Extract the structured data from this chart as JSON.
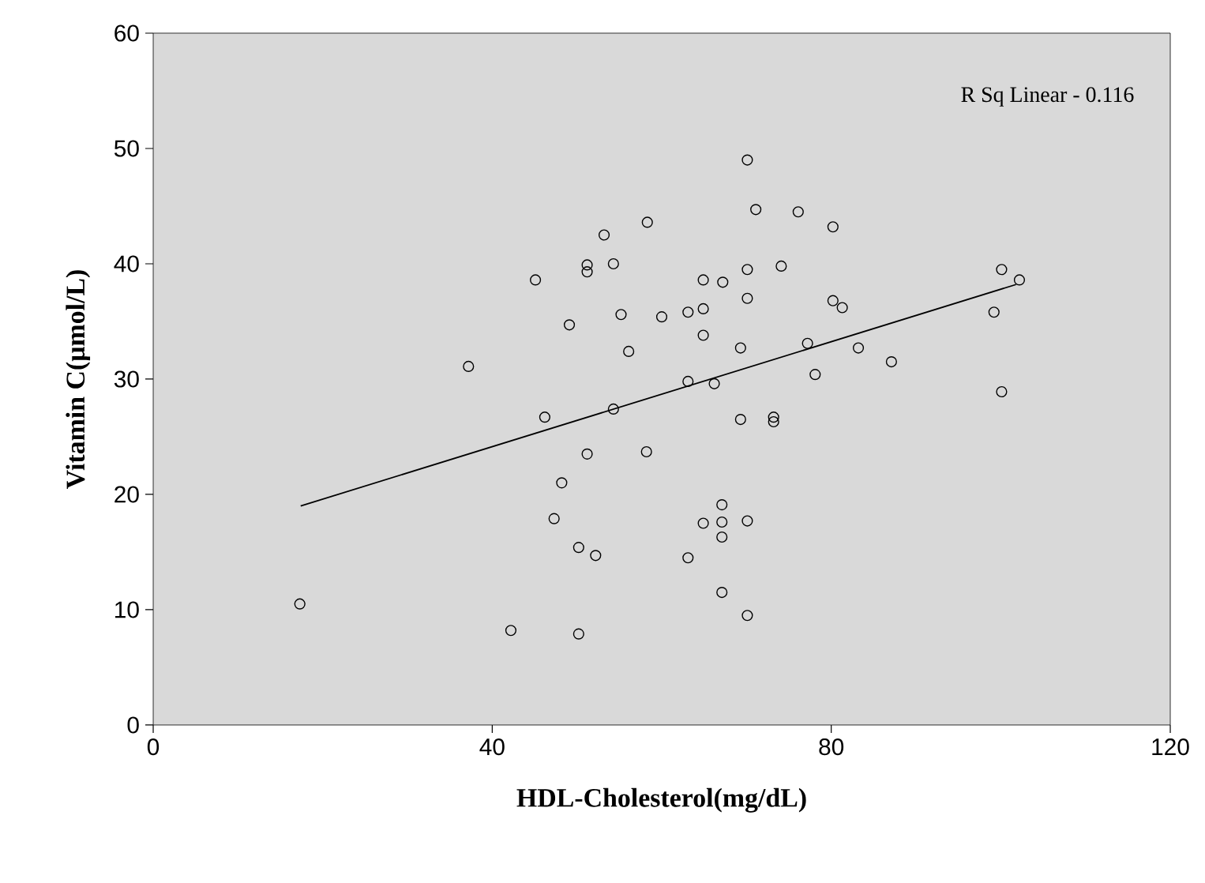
{
  "chart_data": {
    "type": "scatter",
    "xlabel": "HDL-Cholesterol(mg/dL)",
    "ylabel": "Vitamin C(μmol/L)",
    "annotations": [
      "R Sq Linear - 0.116"
    ],
    "xlim": [
      0,
      120
    ],
    "xticks": [
      0,
      40,
      80,
      120
    ],
    "ylim": [
      0,
      60
    ],
    "yticks": [
      0,
      10,
      20,
      30,
      40,
      50,
      60
    ],
    "marker": "circle",
    "series": [
      {
        "color": "#000000",
        "x": [
          58.3,
          53.2,
          51.2,
          51.2,
          54.3,
          45.1,
          64.9,
          49.1,
          55.2,
          60.0,
          63.1,
          64.9,
          64.9,
          56.1,
          37.2,
          63.1,
          46.2,
          54.3,
          51.2,
          58.2,
          48.2,
          47.3,
          50.2,
          52.2,
          63.1,
          64.9,
          17.3,
          42.2,
          50.2,
          70.1,
          71.1,
          76.1,
          80.2,
          67.2,
          70.1,
          74.1,
          70.1,
          80.2,
          81.3,
          69.3,
          77.2,
          83.2,
          87.1,
          78.1,
          66.2,
          69.3,
          73.2,
          73.2,
          100.1,
          102.2,
          99.2,
          100.1,
          67.1,
          67.1,
          67.1,
          70.1,
          67.1,
          70.1
        ],
        "values": [
          43.6,
          42.5,
          39.9,
          39.3,
          40.0,
          38.6,
          38.6,
          34.7,
          35.6,
          35.4,
          35.8,
          36.1,
          33.8,
          32.4,
          31.1,
          29.8,
          26.7,
          27.4,
          23.5,
          23.7,
          21.0,
          17.9,
          15.4,
          14.7,
          14.5,
          17.5,
          10.5,
          8.2,
          7.9,
          49.0,
          44.7,
          44.5,
          43.2,
          38.4,
          39.5,
          39.8,
          37.0,
          36.8,
          36.2,
          32.7,
          33.1,
          32.7,
          31.5,
          30.4,
          29.6,
          26.5,
          26.7,
          26.3,
          39.5,
          38.6,
          35.8,
          28.9,
          19.1,
          17.6,
          16.3,
          17.7,
          11.5,
          9.5
        ]
      },
      {
        "type": "line",
        "color": "#000000",
        "marker": "none",
        "line_style": "solid",
        "x": [
          17.4,
          101.8
        ],
        "values": [
          19.0,
          38.2
        ]
      }
    ]
  }
}
